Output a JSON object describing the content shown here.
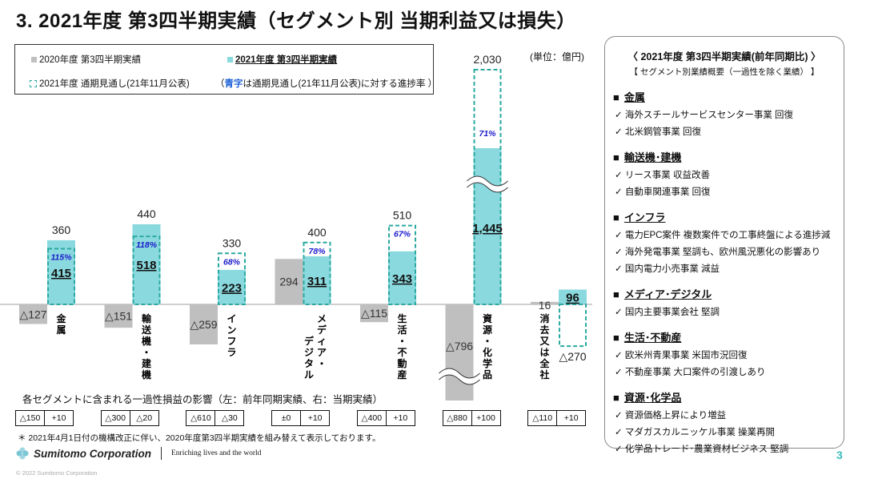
{
  "title": "3. 2021年度 第3四半期実績（セグメント別 当期利益又は損失）",
  "legend": {
    "prev": "2020年度 第3四半期実績",
    "curr": "2021年度 第3四半期実績",
    "forecast": "2021年度 通期見通し(21年11月公表)",
    "note_prefix": "（ ",
    "note_blue": "青字",
    "note_rest": "は通期見通し(21年11月公表)に対する進捗率 ）"
  },
  "unit": "(単位：億円)",
  "chart_data": {
    "type": "bar",
    "categories": [
      "金属",
      "輸送機・建機",
      "インフラ",
      "メディア・デジタル",
      "生活・不動産",
      "資源・化学品",
      "消去又は全社"
    ],
    "series": [
      {
        "name": "2020年度 第3四半期実績",
        "values": [
          -127,
          -151,
          -259,
          294,
          -115,
          -796,
          16
        ],
        "labels": [
          "△127",
          "△151",
          "△259",
          "294",
          "△115",
          "△796",
          "16"
        ]
      },
      {
        "name": "2021年度 第3四半期実績",
        "values": [
          415,
          518,
          223,
          311,
          343,
          1445,
          96
        ],
        "labels": [
          "415",
          "518",
          "223",
          "311",
          "343",
          "1,445",
          "96"
        ]
      },
      {
        "name": "2021年度 通期見通し(21年11月公表)",
        "values": [
          360,
          440,
          330,
          400,
          510,
          2030,
          -270
        ],
        "labels": [
          "360",
          "440",
          "330",
          "400",
          "510",
          "2,030",
          "△270"
        ]
      }
    ],
    "progress_rates": [
      "115%",
      "118%",
      "68%",
      "78%",
      "67%",
      "71%",
      ""
    ],
    "axis_break": [
      false,
      false,
      false,
      false,
      false,
      true,
      false
    ],
    "colors": {
      "prev": "#bfbfbf",
      "curr": "#8ad9de",
      "forecast_border": "#2aa9a0",
      "rate": "#1a1acc"
    },
    "ylabel": "(単位：億円)"
  },
  "oneoff": {
    "title": "各セグメントに含まれる一過性損益の影響（左：前年同期実績、右：当期実績）",
    "pairs": [
      [
        "△150",
        "+10"
      ],
      [
        "△300",
        "△20"
      ],
      [
        "△610",
        "△30"
      ],
      [
        "±0",
        "+10"
      ],
      [
        "△400",
        "+10"
      ],
      [
        "△880",
        "+100"
      ],
      [
        "△110",
        "+10"
      ]
    ]
  },
  "footnote": "＊ 2021年4月1日付の機構改正に伴い、2020年度第3四半期実績を組み替えて表示しております。",
  "footer": {
    "company": "Sumitomo Corporation",
    "tagline": "Enriching lives and the world",
    "copyright": "© 2022 Sumitomo Corporation",
    "page": "3"
  },
  "panel": {
    "heading": "〈 2021年度 第3四半期実績(前年同期比) 〉",
    "sub": "【 セグメント別業績概要（一過性を除く業績） 】",
    "sections": [
      {
        "title": "金属",
        "items": [
          "✓ 海外スチールサービスセンター事業 回復",
          "✓ 北米鋼管事業 回復"
        ]
      },
      {
        "title": "輸送機･建機",
        "items": [
          "✓ リース事業 収益改善",
          "✓ 自動車関連事業 回復"
        ]
      },
      {
        "title": "インフラ",
        "items": [
          "✓ 電力EPC案件 複数案件での工事終盤による進捗減",
          "✓ 海外発電事業 堅調も、欧州風況悪化の影響あり",
          "✓ 国内電力小売事業 減益"
        ]
      },
      {
        "title": "メディア･デジタル",
        "items": [
          "✓ 国内主要事業会社 堅調"
        ]
      },
      {
        "title": "生活･不動産",
        "items": [
          "✓ 欧米州青果事業 米国市況回復",
          "✓ 不動産事業 大口案件の引渡しあり"
        ]
      },
      {
        "title": "資源･化学品",
        "items": [
          "✓ 資源価格上昇により増益",
          "✓ マダガスカルニッケル事業 操業再開",
          "✓ 化学品トレード･農業資材ビジネス 堅調"
        ]
      }
    ]
  }
}
